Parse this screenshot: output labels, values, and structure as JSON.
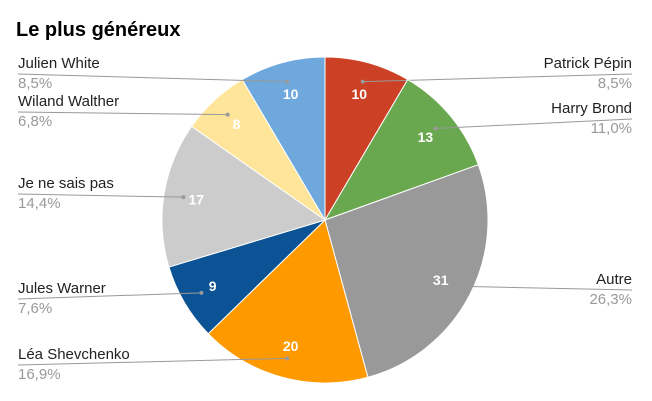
{
  "chart_data": {
    "type": "pie",
    "title": "Le plus généreux",
    "categories": [
      "Patrick Pépin",
      "Harry Brond",
      "Autre",
      "Léa Shevchenko",
      "Jules Warner",
      "Je ne sais pas",
      "Wiland Walther",
      "Julien White"
    ],
    "values": [
      10,
      13,
      31,
      20,
      9,
      17,
      8,
      10
    ],
    "percent_labels": [
      "8,5%",
      "11,0%",
      "26,3%",
      "16,9%",
      "7,6%",
      "14,4%",
      "6,8%",
      "8,5%"
    ],
    "colors": [
      "#cc4125",
      "#6aa84f",
      "#999999",
      "#ff9900",
      "#0b5394",
      "#cccccc",
      "#ffe599",
      "#6fa8dc"
    ]
  }
}
